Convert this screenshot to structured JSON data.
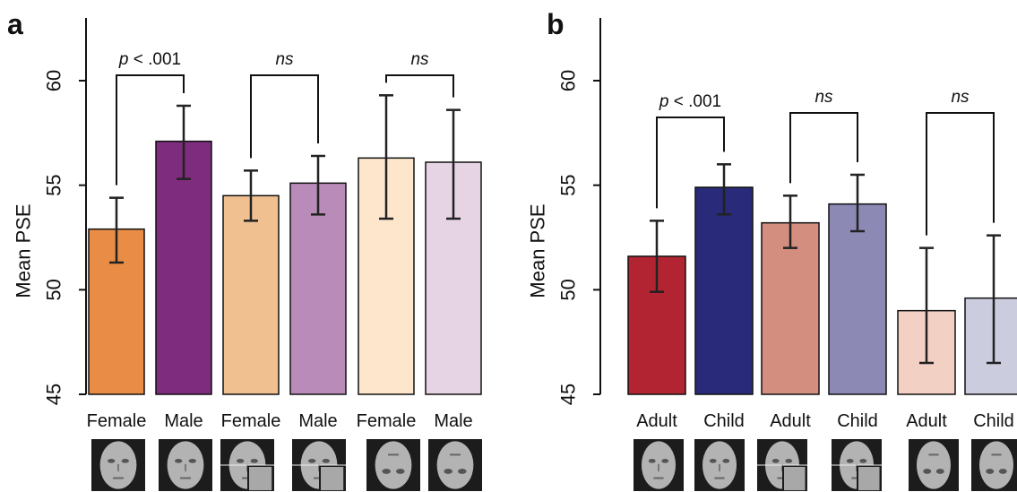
{
  "chart_data": [
    {
      "panel": "a",
      "type": "bar",
      "ylabel": "Mean PSE",
      "ylim": [
        45,
        63
      ],
      "yticks": [
        45,
        50,
        55,
        60
      ],
      "categories": [
        "Female",
        "Male",
        "Female",
        "Male",
        "Female",
        "Male"
      ],
      "values": [
        52.9,
        57.1,
        54.5,
        55.1,
        56.3,
        56.1
      ],
      "error_low": [
        51.3,
        55.3,
        53.3,
        53.6,
        53.4,
        53.4
      ],
      "error_high": [
        54.4,
        58.8,
        55.7,
        56.4,
        59.3,
        58.6
      ],
      "colors": [
        "#e88c46",
        "#7e2c7d",
        "#f1c090",
        "#b98bb9",
        "#fde6cb",
        "#e6d4e4"
      ],
      "icons": [
        "face-icon",
        "face-icon",
        "composite-face-icon",
        "composite-face-icon",
        "inverted-face-icon",
        "inverted-face-icon"
      ],
      "comparisons": [
        {
          "pair": [
            0,
            1
          ],
          "label_prefix": "p",
          "label_rest": " < .001"
        },
        {
          "pair": [
            2,
            3
          ],
          "label_prefix": "ns",
          "label_rest": ""
        },
        {
          "pair": [
            4,
            5
          ],
          "label_prefix": "ns",
          "label_rest": ""
        }
      ]
    },
    {
      "panel": "b",
      "type": "bar",
      "ylabel": "Mean PSE",
      "ylim": [
        45,
        63
      ],
      "yticks": [
        45,
        50,
        55,
        60
      ],
      "categories": [
        "Adult",
        "Child",
        "Adult",
        "Child",
        "Adult",
        "Child"
      ],
      "values": [
        51.6,
        54.9,
        53.2,
        54.1,
        49.0,
        49.6
      ],
      "error_low": [
        49.9,
        53.6,
        52.0,
        52.8,
        46.5,
        46.5
      ],
      "error_high": [
        53.3,
        56.0,
        54.5,
        55.5,
        52.0,
        52.6
      ],
      "colors": [
        "#b22432",
        "#2a2a7a",
        "#d48e80",
        "#8c89b5",
        "#f3d0c4",
        "#ccccdf"
      ],
      "icons": [
        "face-icon",
        "face-icon",
        "composite-face-icon",
        "composite-face-icon",
        "inverted-face-icon",
        "inverted-face-icon"
      ],
      "comparisons": [
        {
          "pair": [
            0,
            1
          ],
          "label_prefix": "p",
          "label_rest": " < .001"
        },
        {
          "pair": [
            2,
            3
          ],
          "label_prefix": "ns",
          "label_rest": ""
        },
        {
          "pair": [
            4,
            5
          ],
          "label_prefix": "ns",
          "label_rest": ""
        }
      ]
    }
  ]
}
